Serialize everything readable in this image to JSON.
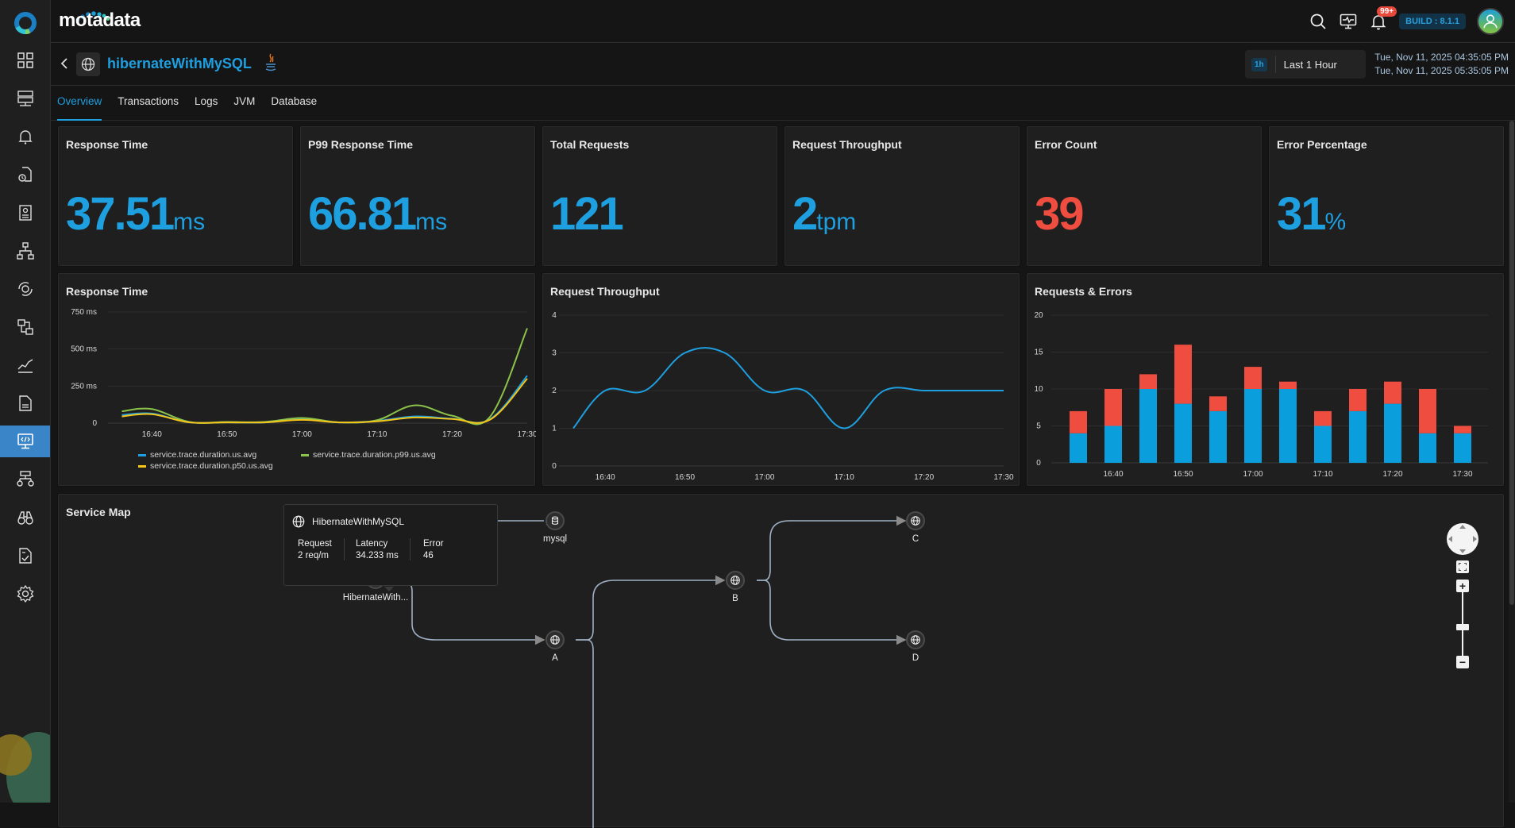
{
  "brand": {
    "name": "motadata"
  },
  "topbar": {
    "notifications_badge": "99+",
    "build_label": "BUILD : 8.1.1",
    "icons": [
      "search-icon",
      "monitor-pulse-icon",
      "bell-icon",
      "user-avatar-icon"
    ]
  },
  "sidebar": {
    "items": [
      {
        "icon": "dashboard-grid-icon",
        "active": false
      },
      {
        "icon": "servers-icon",
        "active": false
      },
      {
        "icon": "alerts-bell-icon",
        "active": false
      },
      {
        "icon": "scheduled-report-icon",
        "active": false
      },
      {
        "icon": "report-icon",
        "active": false
      },
      {
        "icon": "topology-icon",
        "active": false
      },
      {
        "icon": "automation-gear-icon",
        "active": false
      },
      {
        "icon": "flow-icon",
        "active": false
      },
      {
        "icon": "metrics-chart-icon",
        "active": false
      },
      {
        "icon": "document-icon",
        "active": false
      },
      {
        "icon": "apm-code-monitor-icon",
        "active": true
      },
      {
        "icon": "network-devices-icon",
        "active": false
      },
      {
        "icon": "explorer-binoculars-icon",
        "active": false
      },
      {
        "icon": "compliance-checklist-icon",
        "active": false
      },
      {
        "icon": "settings-gear-icon",
        "active": false
      }
    ]
  },
  "header": {
    "service_name": "hibernateWithMySQL",
    "service_type_icon": "globe-icon",
    "language_icon": "java-icon",
    "time_picker": {
      "badge": "1h",
      "label": "Last 1 Hour"
    },
    "time_from": "Tue, Nov 11, 2025 04:35:05 PM",
    "time_to": "Tue, Nov 11, 2025 05:35:05 PM"
  },
  "tabs": [
    {
      "label": "Overview",
      "active": true
    },
    {
      "label": "Transactions",
      "active": false
    },
    {
      "label": "Logs",
      "active": false
    },
    {
      "label": "JVM",
      "active": false
    },
    {
      "label": "Database",
      "active": false
    }
  ],
  "kpis": [
    {
      "title": "Response Time",
      "value": "37.51",
      "unit": "ms",
      "color": "#1e9fe0"
    },
    {
      "title": "P99 Response Time",
      "value": "66.81",
      "unit": "ms",
      "color": "#1e9fe0"
    },
    {
      "title": "Total Requests",
      "value": "121",
      "unit": "",
      "color": "#1e9fe0"
    },
    {
      "title": "Request Throughput",
      "value": "2",
      "unit": "tpm",
      "color": "#1e9fe0"
    },
    {
      "title": "Error Count",
      "value": "39",
      "unit": "",
      "color": "#ef4d3f"
    },
    {
      "title": "Error Percentage",
      "value": "31",
      "unit": "%",
      "color": "#1e9fe0"
    }
  ],
  "chart_data": [
    {
      "type": "line",
      "title": "Response Time",
      "xlabel": "",
      "ylabel": "",
      "x": [
        "16:36",
        "16:40",
        "16:45",
        "16:50",
        "16:55",
        "17:00",
        "17:05",
        "17:10",
        "17:15",
        "17:20",
        "17:25",
        "17:30"
      ],
      "x_ticks": [
        "16:40",
        "16:50",
        "17:00",
        "17:10",
        "17:20",
        "17:30"
      ],
      "y_ticks": [
        "0",
        "250 ms",
        "500 ms",
        "750 ms"
      ],
      "ylim": [
        0,
        750
      ],
      "grid": true,
      "legend": "bottom",
      "series": [
        {
          "name": "service.trace.duration.us.avg",
          "color": "#1e9fe0",
          "values": [
            55,
            65,
            5,
            5,
            5,
            25,
            5,
            15,
            45,
            30,
            25,
            320
          ]
        },
        {
          "name": "service.trace.duration.p99.us.avg",
          "color": "#8bc34a",
          "values": [
            80,
            95,
            8,
            8,
            8,
            35,
            5,
            20,
            120,
            50,
            40,
            640
          ]
        },
        {
          "name": "service.trace.duration.p50.us.avg",
          "color": "#f5c518",
          "values": [
            45,
            60,
            5,
            5,
            5,
            22,
            5,
            12,
            38,
            28,
            22,
            300
          ]
        }
      ]
    },
    {
      "type": "line",
      "title": "Request Throughput",
      "xlabel": "",
      "ylabel": "",
      "x": [
        "16:36",
        "16:40",
        "16:45",
        "16:50",
        "16:55",
        "17:00",
        "17:05",
        "17:10",
        "17:15",
        "17:20",
        "17:25",
        "17:30"
      ],
      "x_ticks": [
        "16:40",
        "16:50",
        "17:00",
        "17:10",
        "17:20",
        "17:30"
      ],
      "y_ticks": [
        "0",
        "1",
        "2",
        "3",
        "4"
      ],
      "ylim": [
        0,
        4
      ],
      "grid": true,
      "series": [
        {
          "name": "throughput",
          "color": "#1e9fe0",
          "values": [
            1,
            2,
            2,
            3,
            3,
            2,
            2,
            1,
            2,
            2,
            2,
            2
          ]
        }
      ]
    },
    {
      "type": "bar",
      "stacked": true,
      "title": "Requests & Errors",
      "xlabel": "",
      "ylabel": "",
      "categories": [
        "16:35",
        "16:40",
        "16:45",
        "16:50",
        "16:55",
        "17:00",
        "17:05",
        "17:10",
        "17:15",
        "17:20",
        "17:25",
        "17:30"
      ],
      "x_ticks": [
        "16:40",
        "16:50",
        "17:00",
        "17:10",
        "17:20",
        "17:30"
      ],
      "y_ticks": [
        "0",
        "5",
        "10",
        "15",
        "20"
      ],
      "ylim": [
        0,
        20
      ],
      "grid": true,
      "series": [
        {
          "name": "Requests",
          "color": "#0a9fdc",
          "values": [
            4,
            5,
            10,
            8,
            7,
            10,
            10,
            5,
            7,
            8,
            4,
            4
          ]
        },
        {
          "name": "Errors",
          "color": "#ef4d3f",
          "values": [
            3,
            5,
            2,
            8,
            2,
            3,
            1,
            2,
            3,
            3,
            6,
            1
          ]
        }
      ]
    }
  ],
  "service_map": {
    "title": "Service Map",
    "tooltip": {
      "name": "HibernateWithMySQL",
      "request_label": "Request",
      "request_value": "2 req/m",
      "latency_label": "Latency",
      "latency_value": "34.233 ms",
      "error_label": "Error",
      "error_value": "46"
    },
    "nodes": [
      {
        "id": "hibernate",
        "label": "HibernateWith...",
        "icon": "globe-icon"
      },
      {
        "id": "mysql",
        "label": "mysql",
        "icon": "database-icon"
      },
      {
        "id": "A",
        "label": "A",
        "icon": "globe-icon"
      },
      {
        "id": "B",
        "label": "B",
        "icon": "globe-icon"
      },
      {
        "id": "C",
        "label": "C",
        "icon": "globe-icon"
      },
      {
        "id": "D",
        "label": "D",
        "icon": "globe-icon"
      }
    ],
    "edges": [
      {
        "from": "hibernate",
        "to": "mysql"
      },
      {
        "from": "hibernate",
        "to": "A"
      },
      {
        "from": "A",
        "to": "B"
      },
      {
        "from": "B",
        "to": "C"
      },
      {
        "from": "B",
        "to": "D"
      }
    ]
  }
}
